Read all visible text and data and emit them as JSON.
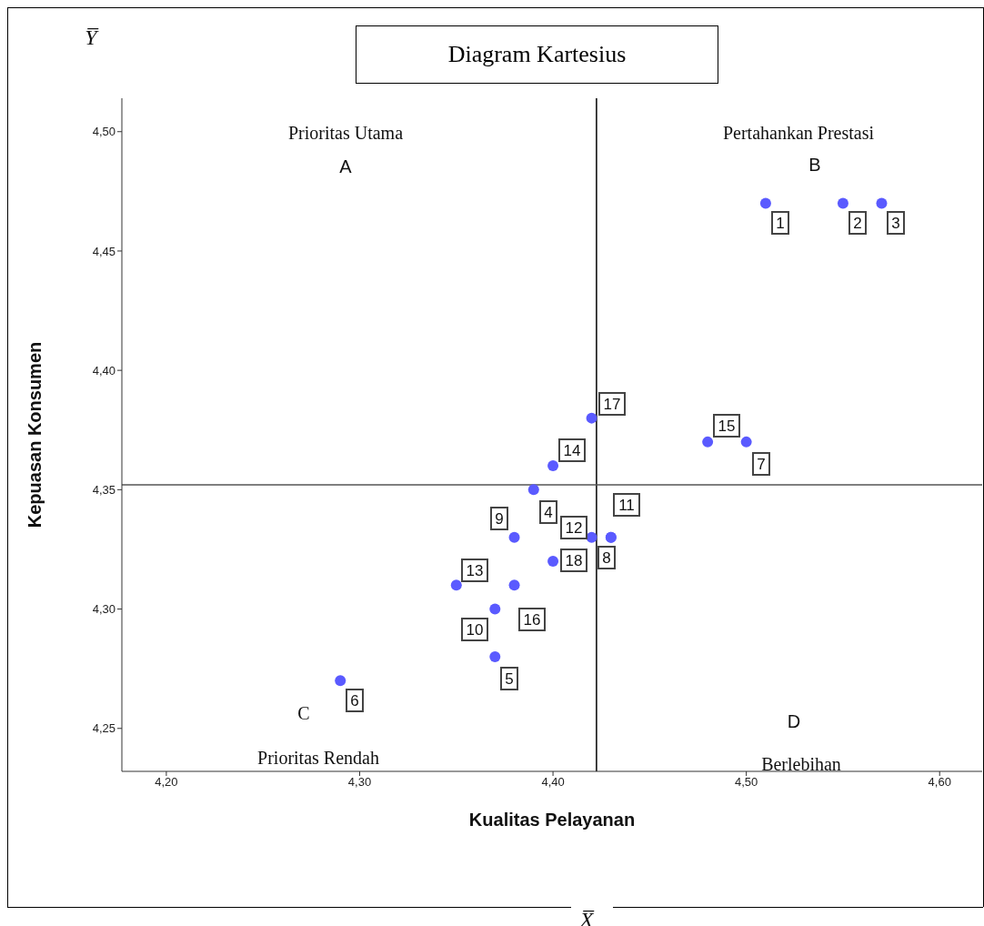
{
  "chart_data": {
    "type": "scatter",
    "title": "Diagram Kartesius",
    "xlabel": "Kualitas Pelayanan",
    "ylabel": "Kepuasan Konsumen",
    "x": [
      4.51,
      4.55,
      4.57,
      4.39,
      4.37,
      4.29,
      4.5,
      4.43,
      4.38,
      4.37,
      4.43,
      4.42,
      4.35,
      4.4,
      4.48,
      4.38,
      4.42,
      4.4
    ],
    "values": [
      4.47,
      4.47,
      4.47,
      4.35,
      4.28,
      4.27,
      4.37,
      4.33,
      4.33,
      4.3,
      4.33,
      4.33,
      4.31,
      4.36,
      4.37,
      4.31,
      4.38,
      4.32
    ],
    "color": "#5a5aff",
    "marker": "circle",
    "grid": false,
    "legend": false,
    "xlim": [
      4.177,
      4.622
    ],
    "ylim": [
      4.232,
      4.514
    ],
    "xticks": [
      {
        "value": 4.2,
        "label": "4,20"
      },
      {
        "value": 4.3,
        "label": "4,30"
      },
      {
        "value": 4.4,
        "label": "4,40"
      },
      {
        "value": 4.5,
        "label": "4,50"
      },
      {
        "value": 4.6,
        "label": "4,60"
      }
    ],
    "yticks": [
      {
        "value": 4.25,
        "label": "4,25"
      },
      {
        "value": 4.3,
        "label": "4,30"
      },
      {
        "value": 4.35,
        "label": "4,35"
      },
      {
        "value": 4.4,
        "label": "4,40"
      },
      {
        "value": 4.45,
        "label": "4,45"
      },
      {
        "value": 4.5,
        "label": "4,50"
      }
    ],
    "ref_lines": [
      {
        "axis": "x",
        "value": 4.4225,
        "color": "#000000"
      },
      {
        "axis": "y",
        "value": 4.352,
        "color": "#555555"
      }
    ],
    "annotations": [
      "Prioritas Utama",
      "A",
      "Pertahankan Prestasi",
      "B",
      "C",
      "Prioritas Rendah",
      "D",
      "Berlebihan",
      "Y̅",
      "X̅",
      {
        "text": "10",
        "x": 4.37,
        "y": 4.3
      },
      {
        "text": "11",
        "x": 4.43,
        "y": 4.33
      },
      {
        "text": "12",
        "x": 4.42,
        "y": 4.33
      },
      {
        "text": "13",
        "x": 4.35,
        "y": 4.31
      },
      {
        "text": "14",
        "x": 4.4,
        "y": 4.36
      },
      {
        "text": "15",
        "x": 4.48,
        "y": 4.37
      },
      {
        "text": "16",
        "x": 4.38,
        "y": 4.31
      },
      {
        "text": "17",
        "x": 4.42,
        "y": 4.38
      },
      {
        "text": "18",
        "x": 4.4,
        "y": 4.32
      },
      {
        "text": "1",
        "x": 4.51,
        "y": 4.47
      },
      {
        "text": "2",
        "x": 4.55,
        "y": 4.47
      },
      {
        "text": "3",
        "x": 4.57,
        "y": 4.47
      },
      {
        "text": "4",
        "x": 4.39,
        "y": 4.35
      },
      {
        "text": "5",
        "x": 4.37,
        "y": 4.28
      },
      {
        "text": "6",
        "x": 4.29,
        "y": 4.27
      },
      {
        "text": "7",
        "x": 4.5,
        "y": 4.37
      },
      {
        "text": "8",
        "x": 4.43,
        "y": 4.33
      },
      {
        "text": "9",
        "x": 4.38,
        "y": 4.33
      }
    ]
  }
}
